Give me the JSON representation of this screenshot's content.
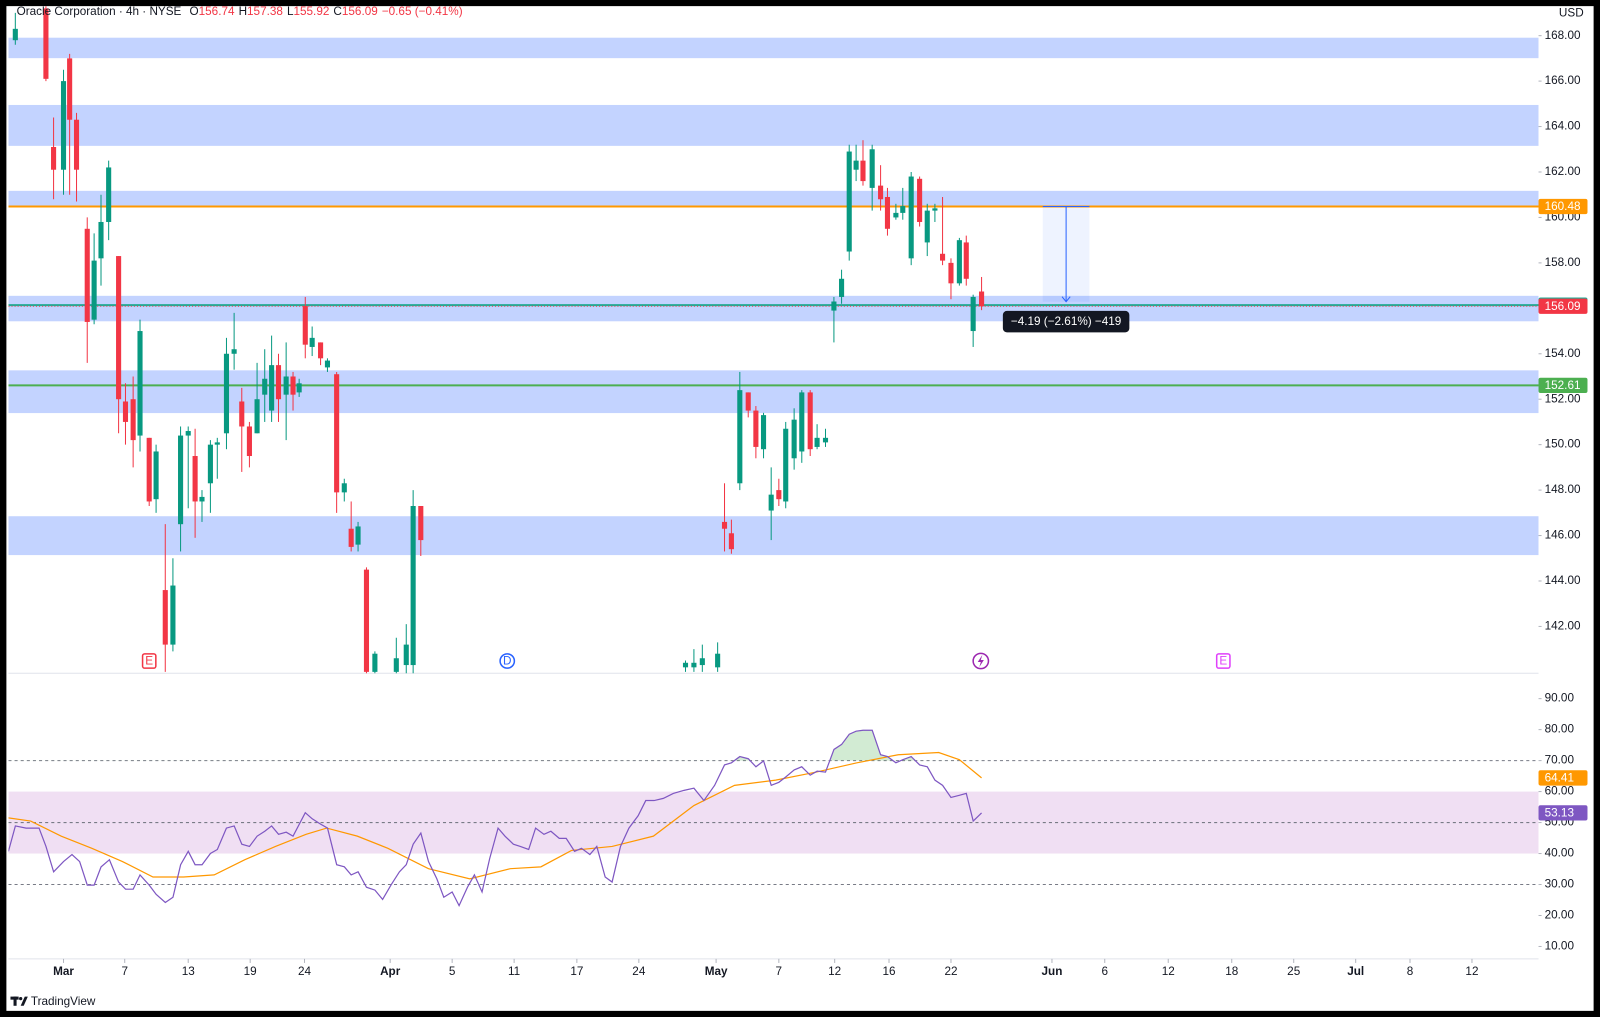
{
  "chart_data": [
    {
      "type": "candlestick",
      "title": "Oracle Corporation · 4h · NYSE",
      "ohlc_labels": [
        "O",
        "H",
        "L",
        "C"
      ],
      "change_text": "−0.65 (−0.41%)",
      "currency": "USD",
      "up_color": "#089981",
      "down_color": "#f23645",
      "xlim": [
        -7.2,
        192.8
      ],
      "xticks": [
        {
          "value": 0,
          "label": "Mar"
        },
        {
          "value": 8,
          "label": "7"
        },
        {
          "value": 16.3,
          "label": "13"
        },
        {
          "value": 24.4,
          "label": "19"
        },
        {
          "value": 31.5,
          "label": "24"
        },
        {
          "value": 42.7,
          "label": "Apr"
        },
        {
          "value": 50.8,
          "label": "5"
        },
        {
          "value": 58.9,
          "label": "11"
        },
        {
          "value": 67.1,
          "label": "17"
        },
        {
          "value": 75.2,
          "label": "24"
        },
        {
          "value": 85.3,
          "label": "May"
        },
        {
          "value": 93.5,
          "label": "7"
        },
        {
          "value": 100.8,
          "label": "12"
        },
        {
          "value": 107.9,
          "label": "16"
        },
        {
          "value": 116,
          "label": "22"
        },
        {
          "value": 129.2,
          "label": "Jun"
        },
        {
          "value": 136.1,
          "label": "6"
        },
        {
          "value": 144.4,
          "label": "12"
        },
        {
          "value": 152.7,
          "label": "18"
        },
        {
          "value": 160.8,
          "label": "25"
        },
        {
          "value": 168.9,
          "label": "Jul"
        },
        {
          "value": 176,
          "label": "8"
        },
        {
          "value": 184.1,
          "label": "12"
        }
      ],
      "ylim": [
        139.94,
        169.3
      ],
      "yticks": [
        {
          "value": 142,
          "label": "142.00"
        },
        {
          "value": 144,
          "label": "144.00"
        },
        {
          "value": 146,
          "label": "146.00"
        },
        {
          "value": 148,
          "label": "148.00"
        },
        {
          "value": 150,
          "label": "150.00"
        },
        {
          "value": 152,
          "label": "152.00"
        },
        {
          "value": 154,
          "label": "154.00"
        },
        {
          "value": 156,
          "label": "156.00"
        },
        {
          "value": 158,
          "label": "158.00"
        },
        {
          "value": 160,
          "label": "160.00"
        },
        {
          "value": 162,
          "label": "162.00"
        },
        {
          "value": 164,
          "label": "164.00"
        },
        {
          "value": 166,
          "label": "166.00"
        },
        {
          "value": 168,
          "label": "168.00"
        }
      ],
      "grid": false,
      "x": [
        -6.3,
        -2.3,
        -1.3,
        0,
        0.8,
        1.7,
        3.1,
        4,
        4.9,
        5.9,
        7.2,
        8.1,
        9.1,
        10,
        11.2,
        12.1,
        13.3,
        14.3,
        15.3,
        16.3,
        17.2,
        18.1,
        19.2,
        20.1,
        21.3,
        22.3,
        23.3,
        24.3,
        25.3,
        26.3,
        27.2,
        28.1,
        29.1,
        30,
        30.8,
        31.6,
        32.5,
        33.6,
        34.5,
        35.7,
        36.7,
        37.6,
        38.5,
        39.6,
        40.7,
        43.5,
        44.8,
        45.7,
        46.7,
        81.3,
        82.4,
        83.5,
        85.5,
        86.4,
        87.3,
        88.4,
        89.5,
        90.5,
        91.5,
        92.5,
        93.5,
        94.4,
        95.5,
        96.5,
        97.6,
        98.5,
        99.6,
        100.7,
        101.7,
        102.7,
        103.6,
        104.5,
        105.7,
        106.8,
        107.7,
        108.8,
        109.7,
        110.8,
        111.9,
        112.9,
        113.9,
        114.9,
        116,
        117.1,
        118,
        118.9,
        120
      ],
      "open": [
        167.8,
        169.2,
        163.1,
        162.1,
        167,
        164.3,
        159.5,
        155.5,
        158.2,
        159.8,
        158.3,
        151.9,
        152,
        150.4,
        150.3,
        147.6,
        143.6,
        141.2,
        146.5,
        150.4,
        149.5,
        147.5,
        148.3,
        150,
        150.5,
        154,
        151.9,
        150.8,
        150.5,
        152.2,
        151.5,
        153.5,
        152.2,
        153,
        152.3,
        156.1,
        154.3,
        154.5,
        153.4,
        153.1,
        147.9,
        146.3,
        145.6,
        144.5,
        140,
        140,
        140.3,
        140.3,
        147.3,
        140.2,
        140.2,
        140.3,
        140.2,
        146.6,
        146.1,
        148.3,
        152.3,
        151.5,
        149.8,
        147.1,
        148,
        147.5,
        149.4,
        149.7,
        152.3,
        149.9,
        150.1,
        155.9,
        156.5,
        158.5,
        162.1,
        162.5,
        161.3,
        161.4,
        160.9,
        160,
        160.2,
        158.2,
        161.7,
        158.9,
        160.3,
        158.4,
        158,
        157.1,
        158.9,
        155,
        156.74
      ],
      "high": [
        169,
        169.3,
        164.4,
        166.5,
        167.2,
        164.6,
        160,
        159.3,
        161,
        162.5,
        158.3,
        152.7,
        153,
        155.5,
        150.3,
        150,
        146.5,
        145,
        150.8,
        150.8,
        150.7,
        148,
        150.2,
        150.3,
        154.7,
        155.8,
        152.5,
        151,
        153.6,
        154.2,
        154.8,
        154,
        154.5,
        153.2,
        152.9,
        156.5,
        155.2,
        154.5,
        153.8,
        153.2,
        148.5,
        147.5,
        146.6,
        144.6,
        140.9,
        141.5,
        142.1,
        148,
        147.3,
        140.5,
        141,
        141.2,
        141.3,
        148.3,
        146.7,
        153.2,
        152.3,
        151.7,
        151.4,
        149,
        148.5,
        151,
        151.6,
        152.4,
        152.4,
        150.9,
        150.7,
        156.5,
        157.7,
        163.2,
        163.2,
        163.4,
        163.2,
        162.3,
        161.3,
        160.6,
        161.3,
        162,
        161.8,
        160.6,
        160.6,
        160.9,
        158.2,
        159.1,
        159.2,
        156.6,
        157.38
      ],
      "low": [
        167.6,
        166,
        160.8,
        161,
        161,
        160.7,
        153.6,
        155.3,
        157,
        159,
        150.5,
        150,
        149,
        149.7,
        147.3,
        147,
        140,
        140.9,
        145.3,
        147.2,
        145.9,
        146.6,
        147,
        148.5,
        149.8,
        153.3,
        148.8,
        149,
        150.5,
        151,
        151,
        151,
        150.2,
        151.5,
        152.1,
        153.8,
        153.9,
        153.5,
        153.2,
        147,
        147.5,
        145.3,
        145.3,
        139.9,
        139.9,
        139.9,
        139.9,
        139.9,
        145.1,
        140,
        140,
        140,
        140,
        145.3,
        145.2,
        148,
        151.2,
        149.4,
        149.4,
        145.8,
        147.3,
        147.2,
        148.9,
        149.2,
        149.5,
        149.8,
        149.9,
        154.5,
        156.2,
        158.1,
        161.6,
        161.4,
        160.3,
        160.3,
        159.2,
        159.9,
        159.9,
        157.9,
        159.6,
        158.3,
        159.8,
        157.9,
        156.4,
        157,
        157,
        154.3,
        155.92
      ],
      "close": [
        168.3,
        166.1,
        162.1,
        166,
        164.3,
        162.1,
        155.4,
        158.1,
        159.8,
        162.2,
        152,
        151,
        150.2,
        155,
        147.5,
        149.7,
        141.2,
        143.8,
        150.4,
        150.6,
        147.5,
        147.7,
        150,
        150.1,
        154,
        154.2,
        150.8,
        149.5,
        152,
        152.9,
        153.5,
        152,
        153,
        152.2,
        152.7,
        154.4,
        154.7,
        153.8,
        153.7,
        147.9,
        148.3,
        145.5,
        146.4,
        140,
        140.8,
        140.6,
        141.2,
        147.3,
        145.8,
        140.4,
        140.4,
        140.6,
        140.8,
        146.3,
        145.4,
        152.4,
        151.5,
        149.9,
        151.3,
        147.8,
        147.6,
        150.7,
        151.1,
        152.3,
        149.8,
        150.3,
        150.3,
        156.3,
        157.3,
        162.9,
        162.5,
        161.6,
        163,
        160.8,
        159.5,
        160.2,
        160.5,
        161.8,
        159.8,
        160.3,
        160.4,
        158.1,
        157.1,
        159,
        157.3,
        156.5,
        156.09
      ],
      "zones": [
        [
          167.01,
          167.91
        ],
        [
          163.15,
          164.95
        ],
        [
          160.45,
          161.17
        ],
        [
          155.43,
          156.55
        ],
        [
          151.39,
          153.27
        ],
        [
          145.14,
          146.85
        ]
      ],
      "zone_color": "#2962ff",
      "levels": [
        {
          "value": 160.48,
          "color": "#ff9800"
        },
        {
          "value": 156.14,
          "color": "#22ab94"
        },
        {
          "value": 152.61,
          "color": "#4caf50"
        }
      ],
      "measure": {
        "x": [
          128,
          134.1
        ],
        "from": 160.48,
        "to": 156.29,
        "label": "−4.19 (−2.61%) −419"
      },
      "events": [
        {
          "x": 11.2,
          "label": "E",
          "color": "#f23645"
        },
        {
          "x": 58,
          "label": "D",
          "color": "#2962ff"
        },
        {
          "x": 119.9,
          "color": "#9c27b0"
        },
        {
          "x": 151.6,
          "label": "E",
          "color": "#e040fb"
        }
      ],
      "brand": "TradingView"
    },
    {
      "type": "line",
      "ylim": [
        6,
        98.2
      ],
      "yticks": [
        {
          "value": 10,
          "label": "10.00"
        },
        {
          "value": 20,
          "label": "20.00"
        },
        {
          "value": 30,
          "label": "30.00"
        },
        {
          "value": 40,
          "label": "40.00"
        },
        {
          "value": 50,
          "label": "50.00"
        },
        {
          "value": 60,
          "label": "60.00"
        },
        {
          "value": 70,
          "label": "70.00"
        },
        {
          "value": 80,
          "label": "80.00"
        },
        {
          "value": 90,
          "label": "90.00"
        }
      ],
      "bands": {
        "upper": 70,
        "middle": 50,
        "lower": 30,
        "zone": [
          40,
          60
        ],
        "zone_color": "#9c27b0",
        "overbought_color": "#4caf50"
      },
      "series": [
        {
          "color": "#7e57c2",
          "x": [
            -7.2,
            -6.3,
            -4.9,
            -3.2,
            -2.3,
            -1.3,
            0,
            1.1,
            2.1,
            3.1,
            4,
            4.9,
            6,
            7.2,
            8.1,
            9.1,
            10,
            11.2,
            12.1,
            13.3,
            14.3,
            15.3,
            16.3,
            17.2,
            18.1,
            19.2,
            20.1,
            21.3,
            22.3,
            23.3,
            24.3,
            25.3,
            26.3,
            27.2,
            28.1,
            29.1,
            30,
            31.6,
            32.5,
            33.6,
            34.5,
            35.7,
            36.7,
            37.6,
            38.5,
            39.6,
            40.7,
            41.7,
            42.8,
            43.9,
            44.8,
            45.7,
            46.7,
            47.7,
            48.8,
            49.7,
            50.8,
            51.7,
            52.8,
            53.7,
            54.7,
            55.7,
            56.8,
            57.7,
            58.8,
            59.7,
            60.8,
            61.7,
            62.8,
            63.7,
            64.8,
            65.7,
            66.8,
            67.7,
            68.8,
            69.7,
            70.8,
            71.7,
            72.8,
            73.9,
            75.1,
            76.1,
            77.2,
            78.4,
            79.7,
            81.1,
            82.4,
            83.7,
            85.1,
            86.4,
            87.3,
            88.4,
            89.5,
            90.5,
            91.5,
            92.5,
            93.5,
            94.4,
            95.5,
            96.5,
            97.6,
            98.5,
            99.6,
            100.7,
            101.7,
            102.7,
            103.6,
            104.5,
            105.7,
            106.8,
            107.7,
            108.8,
            109.7,
            110.8,
            111.9,
            112.9,
            113.9,
            114.9,
            116,
            117.1,
            118,
            118.9,
            120
          ],
          "values": [
            40.7,
            48.9,
            48.2,
            48.2,
            42.3,
            34.1,
            37.4,
            39.7,
            37.4,
            29.8,
            29.8,
            35.7,
            38,
            30.8,
            28.5,
            28.5,
            33.1,
            29.8,
            26.8,
            24.2,
            25.9,
            36.4,
            40.7,
            36.4,
            36.4,
            40,
            41.3,
            48.2,
            48.9,
            43,
            42.3,
            45.6,
            47.2,
            48.9,
            46.2,
            46.9,
            45.6,
            53.2,
            51.2,
            49.5,
            48.2,
            36.4,
            35.7,
            33.1,
            34.1,
            29.1,
            28.2,
            25.2,
            29.8,
            34.1,
            36.4,
            43,
            46.6,
            37.4,
            31.8,
            25.9,
            27.6,
            23.2,
            29.1,
            33.1,
            27.6,
            38.4,
            48.2,
            45.6,
            43,
            42.3,
            41.3,
            48.2,
            46.2,
            47.2,
            44.9,
            44.9,
            40.7,
            41.7,
            39.7,
            42.3,
            32.4,
            30.8,
            42.3,
            48.2,
            52.2,
            57.1,
            57.1,
            57.8,
            59.4,
            60.4,
            61.1,
            57.1,
            62,
            68.6,
            69.3,
            71.3,
            70.6,
            68,
            69.9,
            62,
            63,
            64.7,
            67,
            68,
            65.3,
            66.6,
            66.3,
            73.6,
            75.2,
            78.5,
            79.5,
            79.8,
            79.8,
            71.9,
            71.3,
            69.3,
            70.3,
            71.3,
            68.6,
            68,
            63.7,
            62,
            58.1,
            58.8,
            59.4,
            50.5,
            53.13
          ]
        },
        {
          "color": "#ff9800",
          "x": [
            -7.2,
            -4.3,
            -0.3,
            3.7,
            7.7,
            11.7,
            15.7,
            19.7,
            23.7,
            27.7,
            31.7,
            34.4,
            38.4,
            42.4,
            47.7,
            53.1,
            58.4,
            62.4,
            66.4,
            71.7,
            77.1,
            82.4,
            87.7,
            93.1,
            98.4,
            103.7,
            109.1,
            114.4,
            117.1,
            120
          ],
          "values": [
            51.5,
            50.5,
            45.6,
            41.7,
            37.4,
            32.4,
            32.4,
            33.1,
            38,
            42.3,
            46.2,
            48.2,
            45.6,
            41.7,
            35.1,
            31.8,
            35.1,
            35.7,
            41,
            42.3,
            45.6,
            55.5,
            62,
            63.7,
            66.3,
            69.3,
            71.9,
            72.6,
            70.3,
            64.41
          ]
        }
      ]
    }
  ]
}
